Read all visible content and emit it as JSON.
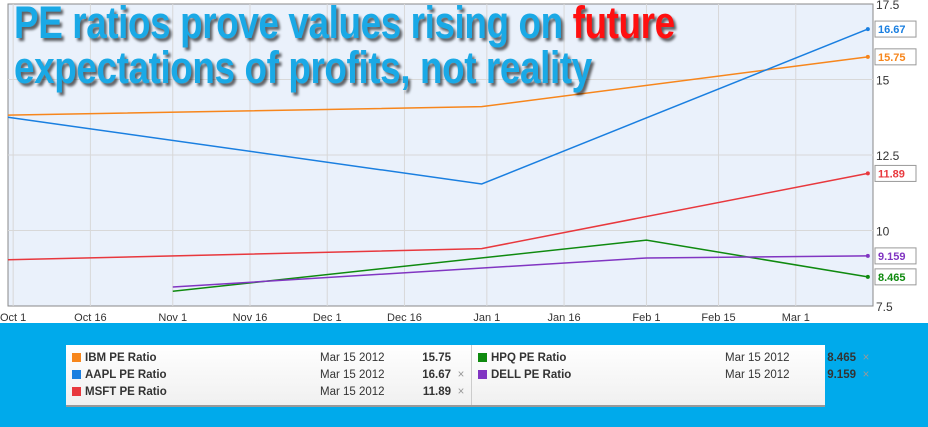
{
  "title": {
    "line1_a": "PE ratios prove values rising on ",
    "line1_b": "future",
    "line2": "expectations of profits, not reality"
  },
  "chart_data": {
    "type": "line",
    "x_unit": "days since Oct 1 2011",
    "xlim": [
      -1,
      167
    ],
    "ylim": [
      7.5,
      17.5
    ],
    "yticks": [
      7.5,
      10,
      12.5,
      15,
      17.5
    ],
    "xticks": [
      {
        "v": 0,
        "label": "Oct 1"
      },
      {
        "v": 15,
        "label": "Oct 16"
      },
      {
        "v": 31,
        "label": "Nov 1"
      },
      {
        "v": 46,
        "label": "Nov 16"
      },
      {
        "v": 61,
        "label": "Dec 1"
      },
      {
        "v": 76,
        "label": "Dec 16"
      },
      {
        "v": 92,
        "label": "Jan 1"
      },
      {
        "v": 107,
        "label": "Jan 16"
      },
      {
        "v": 123,
        "label": "Feb 1"
      },
      {
        "v": 137,
        "label": "Feb 15"
      },
      {
        "v": 152,
        "label": "Mar 1"
      }
    ],
    "series": [
      {
        "name": "IBM PE Ratio",
        "color": "#f7861c",
        "points": [
          [
            -1,
            13.82
          ],
          [
            91,
            14.1
          ],
          [
            166,
            15.75
          ]
        ],
        "last": "15.75"
      },
      {
        "name": "AAPL PE Ratio",
        "color": "#1a7fe0",
        "points": [
          [
            -1,
            13.75
          ],
          [
            91,
            11.54
          ],
          [
            166,
            16.67
          ]
        ],
        "last": "16.67"
      },
      {
        "name": "MSFT PE Ratio",
        "color": "#e8383d",
        "points": [
          [
            -1,
            9.03
          ],
          [
            91,
            9.4
          ],
          [
            166,
            11.89
          ]
        ],
        "last": "11.89"
      },
      {
        "name": "HPQ PE Ratio",
        "color": "#0f8a0f",
        "points": [
          [
            31,
            7.99
          ],
          [
            123,
            9.68
          ],
          [
            166,
            8.465
          ]
        ],
        "last": "8.465"
      },
      {
        "name": "DELL PE Ratio",
        "color": "#8135c2",
        "points": [
          [
            31,
            8.13
          ],
          [
            123,
            9.09
          ],
          [
            166,
            9.159
          ]
        ],
        "last": "9.159"
      }
    ]
  },
  "legend": {
    "left": [
      {
        "name": "IBM PE Ratio",
        "date": "Mar 15 2012",
        "value": "15.75",
        "color": "#f7861c",
        "close": ""
      },
      {
        "name": "AAPL PE Ratio",
        "date": "Mar 15 2012",
        "value": "16.67",
        "color": "#1a7fe0",
        "close": "×"
      },
      {
        "name": "MSFT PE Ratio",
        "date": "Mar 15 2012",
        "value": "11.89",
        "color": "#e8383d",
        "close": "×"
      }
    ],
    "right": [
      {
        "name": "HPQ PE Ratio",
        "date": "Mar 15 2012",
        "value": "8.465",
        "color": "#0f8a0f",
        "close": "×"
      },
      {
        "name": "DELL PE Ratio",
        "date": "Mar 15 2012",
        "value": "9.159",
        "color": "#8135c2",
        "close": "×"
      }
    ]
  }
}
